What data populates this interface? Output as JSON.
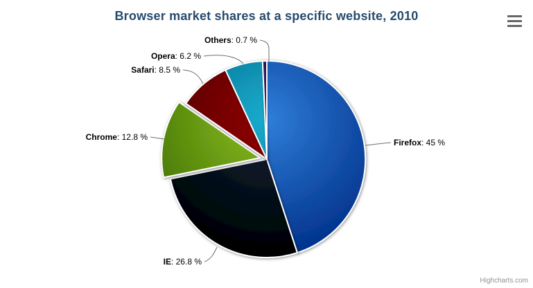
{
  "chart_data": {
    "type": "pie",
    "title": "Browser market shares at a specific website, 2010",
    "legend": false,
    "label_separator": ": ",
    "value_suffix": " %",
    "slices": [
      {
        "label": "Firefox",
        "value": 45,
        "color": "#2f7ed8",
        "sliced": false
      },
      {
        "label": "IE",
        "value": 26.8,
        "color": "#0d233a",
        "sliced": false
      },
      {
        "label": "Chrome",
        "value": 12.8,
        "color": "#8bbc21",
        "sliced": true
      },
      {
        "label": "Safari",
        "value": 8.5,
        "color": "#910000",
        "sliced": false
      },
      {
        "label": "Opera",
        "value": 6.2,
        "color": "#1aadce",
        "sliced": false
      },
      {
        "label": "Others",
        "value": 0.7,
        "color": "#492970",
        "sliced": false
      }
    ]
  },
  "colors": {
    "title": "#274b6d",
    "connector": "#6d6d6d",
    "slice_border": "#ffffff",
    "menu_icon": "#666666",
    "credits": "#909090"
  },
  "menu": {
    "icon": "hamburger-menu-icon"
  },
  "credits": {
    "text": "Highcharts.com"
  }
}
